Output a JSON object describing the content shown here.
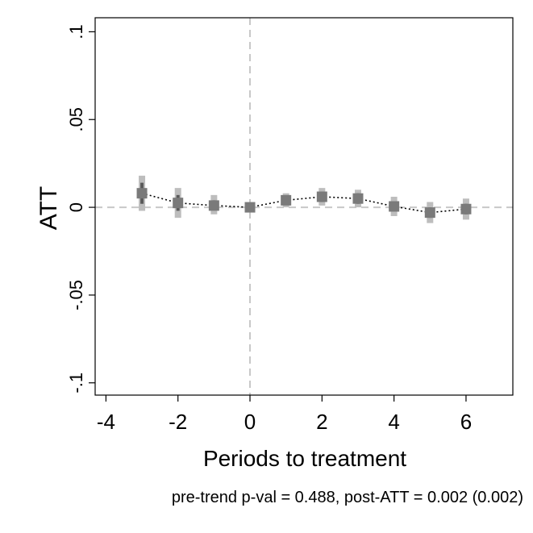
{
  "chart_data": {
    "type": "scatter",
    "title": "",
    "xlabel": "Periods to treatment",
    "ylabel": "ATT",
    "xlim": [
      -4.3,
      7.3
    ],
    "ylim": [
      -0.107,
      0.108
    ],
    "x_ticks": [
      -4,
      -2,
      0,
      2,
      4,
      6
    ],
    "x_tick_labels": [
      "-4",
      "-2",
      "0",
      "2",
      "4",
      "6"
    ],
    "y_ticks": [
      -0.1,
      -0.05,
      0,
      0.05,
      0.1
    ],
    "y_tick_labels": [
      "-.1",
      "-.05",
      "0",
      ".05",
      ".1"
    ],
    "reference_lines": {
      "x": 0,
      "y": 0,
      "style": "dashed"
    },
    "connect_points": true,
    "grid": false,
    "legend": "none",
    "points": [
      {
        "x": -3,
        "y": 0.008,
        "ci_outer": [
          -0.002,
          0.018
        ],
        "ci_inner": [
          0.002,
          0.014
        ]
      },
      {
        "x": -2,
        "y": 0.0025,
        "ci_outer": [
          -0.006,
          0.011
        ],
        "ci_inner": [
          -0.002,
          0.007
        ]
      },
      {
        "x": -1,
        "y": 0.001,
        "ci_outer": [
          -0.004,
          0.007
        ],
        "ci_inner": [
          -0.001,
          0.004
        ]
      },
      {
        "x": 0,
        "y": 0.0,
        "ci_outer": [
          -0.002,
          0.002
        ],
        "ci_inner": [
          -0.001,
          0.001
        ]
      },
      {
        "x": 1,
        "y": 0.004,
        "ci_outer": [
          0.0,
          0.008
        ],
        "ci_inner": [
          0.002,
          0.006
        ]
      },
      {
        "x": 2,
        "y": 0.006,
        "ci_outer": [
          0.001,
          0.011
        ],
        "ci_inner": [
          0.003,
          0.009
        ]
      },
      {
        "x": 3,
        "y": 0.005,
        "ci_outer": [
          0.0,
          0.01
        ],
        "ci_inner": [
          0.002,
          0.008
        ]
      },
      {
        "x": 4,
        "y": 0.0005,
        "ci_outer": [
          -0.005,
          0.006
        ],
        "ci_inner": [
          -0.002,
          0.003
        ]
      },
      {
        "x": 5,
        "y": -0.003,
        "ci_outer": [
          -0.009,
          0.003
        ],
        "ci_inner": [
          -0.006,
          0.0
        ]
      },
      {
        "x": 6,
        "y": -0.001,
        "ci_outer": [
          -0.007,
          0.005
        ],
        "ci_inner": [
          -0.004,
          0.002
        ]
      }
    ],
    "colors": {
      "marker": "#7a7a7a",
      "ci_outer": "#bdbdbd",
      "ci_inner": "#5a5a5a",
      "reference": "#c8c8c8",
      "connector": "#000000"
    }
  },
  "note": "pre-trend p-val = 0.488, post-ATT = 0.002 (0.002)"
}
